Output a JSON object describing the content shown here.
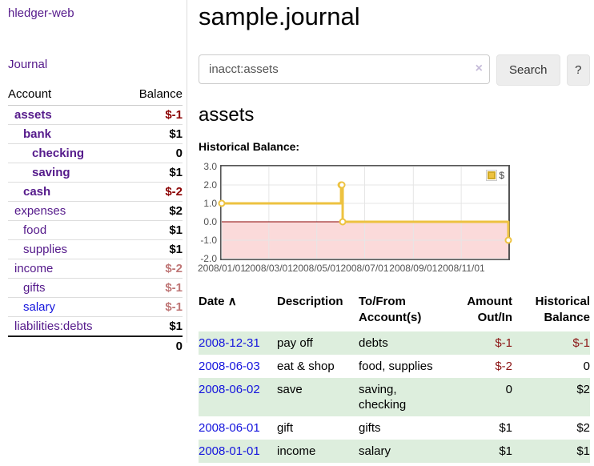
{
  "sidebar": {
    "brand": "hledger-web",
    "journal_link": "Journal",
    "accounts_table": {
      "headers": {
        "account": "Account",
        "balance": "Balance"
      },
      "rows": [
        {
          "name": "assets",
          "balance": "$-1",
          "indent": 1,
          "bold": true,
          "dim": false
        },
        {
          "name": "bank",
          "balance": "$1",
          "indent": 2,
          "bold": true,
          "dim": false
        },
        {
          "name": "checking",
          "balance": "0",
          "indent": 3,
          "bold": true,
          "dim": false
        },
        {
          "name": "saving",
          "balance": "$1",
          "indent": 3,
          "bold": true,
          "dim": false
        },
        {
          "name": "cash",
          "balance": "$-2",
          "indent": 2,
          "bold": true,
          "dim": false
        },
        {
          "name": "expenses",
          "balance": "$2",
          "indent": 1,
          "bold": false,
          "dim": false
        },
        {
          "name": "food",
          "balance": "$1",
          "indent": 2,
          "bold": false,
          "dim": false
        },
        {
          "name": "supplies",
          "balance": "$1",
          "indent": 2,
          "bold": false,
          "dim": false
        },
        {
          "name": "income",
          "balance": "$-2",
          "indent": 1,
          "bold": false,
          "dim": true
        },
        {
          "name": "gifts",
          "balance": "$-1",
          "indent": 2,
          "bold": false,
          "dim": true
        },
        {
          "name": "salary",
          "balance": "$-1",
          "indent": 2,
          "bold": false,
          "dim": true,
          "blue": true
        },
        {
          "name": "liabilities:debts",
          "balance": "$1",
          "indent": 1,
          "bold": false,
          "dim": false
        }
      ],
      "total": "0"
    }
  },
  "header": {
    "title": "sample.journal"
  },
  "search": {
    "value": "inacct:assets",
    "clear_icon": "×",
    "button_label": "Search",
    "help_label": "?"
  },
  "account_page": {
    "title": "assets",
    "chart_label": "Historical Balance:"
  },
  "chart_data": {
    "type": "line",
    "title": "Historical Balance",
    "legend": "$",
    "legend_position": "top-right",
    "grid": true,
    "xlim": [
      "2008-01-01",
      "2008-12-31"
    ],
    "ylim": [
      -2,
      3
    ],
    "y_ticks": [
      {
        "v": 3,
        "label": "3.0"
      },
      {
        "v": 2,
        "label": "2.0"
      },
      {
        "v": 1,
        "label": "1.0"
      },
      {
        "v": 0,
        "label": "0.0"
      },
      {
        "v": -1,
        "label": "-1.0"
      },
      {
        "v": -2,
        "label": "-2.0"
      }
    ],
    "x_ticks": [
      {
        "date": "2008-01-01",
        "label": "2008/01/01"
      },
      {
        "date": "2008-03-01",
        "label": "2008/03/01"
      },
      {
        "date": "2008-05-01",
        "label": "2008/05/01"
      },
      {
        "date": "2008-07-01",
        "label": "2008/07/01"
      },
      {
        "date": "2008-09-01",
        "label": "2008/09/01"
      },
      {
        "date": "2008-11-01",
        "label": "2008/11/01"
      }
    ],
    "series": [
      {
        "name": "$",
        "color": "#edc240",
        "step": true,
        "points": [
          [
            "2008-01-01",
            1
          ],
          [
            "2008-06-01",
            2
          ],
          [
            "2008-06-02",
            2
          ],
          [
            "2008-06-03",
            0
          ],
          [
            "2008-12-31",
            -1
          ]
        ]
      }
    ],
    "negative_region_color": "#fbdada",
    "zero_line_color": "#8b0000",
    "gridline_color": "#e6e6e6"
  },
  "register": {
    "headers": {
      "date": "Date",
      "sort_icon": "∧",
      "description": "Description",
      "accounts": "To/From Account(s)",
      "amount": "Amount Out/In",
      "balance": "Historical Balance"
    },
    "rows": [
      {
        "date": "2008-12-31",
        "description": "pay off",
        "accounts": "debts",
        "amount": "$-1",
        "balance": "$-1"
      },
      {
        "date": "2008-06-03",
        "description": "eat & shop",
        "accounts": "food, supplies",
        "amount": "$-2",
        "balance": "0"
      },
      {
        "date": "2008-06-02",
        "description": "save",
        "accounts": "saving, checking",
        "amount": "0",
        "balance": "$2"
      },
      {
        "date": "2008-06-01",
        "description": "gift",
        "accounts": "gifts",
        "amount": "$1",
        "balance": "$2"
      },
      {
        "date": "2008-01-01",
        "description": "income",
        "accounts": "salary",
        "amount": "$1",
        "balance": "$1"
      }
    ]
  }
}
